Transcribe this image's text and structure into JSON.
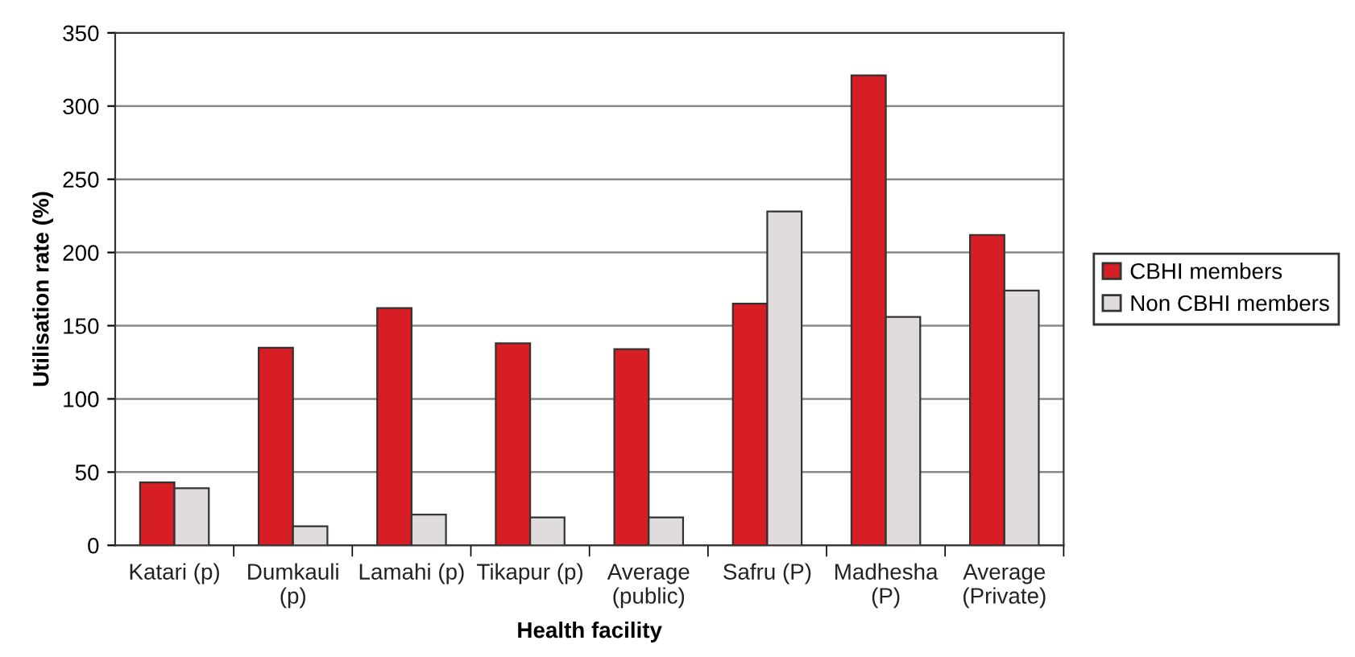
{
  "chart_data": {
    "type": "bar",
    "xlabel": "Health facility",
    "ylabel": "Utilisation rate (%)",
    "categories": [
      "Katari (p)",
      "Dumkauli\n(p)",
      "Lamahi (p)",
      "Tikapur (p)",
      "Average\n(public)",
      "Safru (P)",
      "Madhesha\n(P)",
      "Average\n(Private)"
    ],
    "series": [
      {
        "name": "CBHI members",
        "color": "#d71e25",
        "values": [
          43,
          135,
          162,
          138,
          134,
          165,
          321,
          212
        ]
      },
      {
        "name": "Non CBHI members",
        "color": "#e0dcdc",
        "values": [
          39,
          13,
          21,
          19,
          19,
          228,
          156,
          174
        ]
      }
    ],
    "ylim": [
      0,
      350
    ],
    "yticks": [
      0,
      50,
      100,
      150,
      200,
      250,
      300,
      350
    ],
    "grid": "y",
    "legend": "right"
  }
}
